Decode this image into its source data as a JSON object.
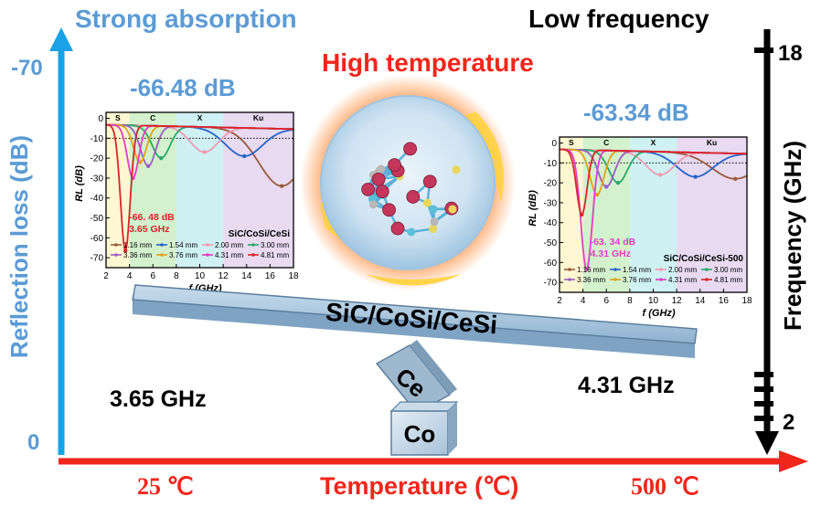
{
  "labels": {
    "strong_absorption": "Strong absorption",
    "low_frequency": "Low frequency",
    "high_temperature": "High temperature",
    "reflection_loss_axis": "Reflection loss (dB)",
    "frequency_axis": "Frequency (GHz)",
    "temperature_axis": "Temperature (℃)",
    "rl_top": "-70",
    "rl_bottom": "0",
    "freq_top": "18",
    "freq_bottom": "2",
    "temp_left": "25 ℃",
    "temp_right": "500 ℃",
    "beam": "SiC/CoSi/CeSi",
    "block_ce": "Ce",
    "block_co": "Co",
    "left_freq": "3.65 GHz",
    "right_freq": "4.31 GHz"
  },
  "colors": {
    "blue": "#5b9bd5",
    "red": "#f0261b",
    "black": "#000000",
    "beam": "#a9c6df"
  },
  "chart_data": [
    {
      "type": "line",
      "headline": "-66.48 dB",
      "legend_title": "SiC/CoSi/CeSi",
      "annotation": [
        "-66. 48 dB",
        "3.65 GHz"
      ],
      "xlabel": "f (GHz)",
      "ylabel": "RL (dB)",
      "xlim": [
        2,
        18
      ],
      "ylim": [
        -75,
        3
      ],
      "xticks": [
        2,
        4,
        6,
        8,
        10,
        12,
        14,
        16,
        18
      ],
      "yticks": [
        0,
        -10,
        -20,
        -30,
        -40,
        -50,
        -60,
        -70
      ],
      "bands": [
        {
          "label": "S",
          "from": 2,
          "to": 4,
          "color": "#fff6c9"
        },
        {
          "label": "C",
          "from": 4,
          "to": 8,
          "color": "#cdeec4"
        },
        {
          "label": "X",
          "from": 8,
          "to": 12,
          "color": "#c7eef2"
        },
        {
          "label": "Ku",
          "from": 12,
          "to": 18,
          "color": "#e3d3ee"
        }
      ],
      "threshold": -10,
      "series": [
        {
          "name": "1.16 mm",
          "color": "#9b5a3c",
          "peak_f": 17.0,
          "peak_rl": -34
        },
        {
          "name": "1.54 mm",
          "color": "#2563c9",
          "peak_f": 13.8,
          "peak_rl": -19
        },
        {
          "name": "2.00 mm",
          "color": "#f29ab0",
          "peak_f": 10.4,
          "peak_rl": -17
        },
        {
          "name": "3.00 mm",
          "color": "#2aa86a",
          "peak_f": 6.7,
          "peak_rl": -20
        },
        {
          "name": "3.36 mm",
          "color": "#9b5fc0",
          "peak_f": 5.6,
          "peak_rl": -24
        },
        {
          "name": "3.76 mm",
          "color": "#e0a21a",
          "peak_f": 4.9,
          "peak_rl": -22
        },
        {
          "name": "4.31 mm",
          "color": "#e03fc2",
          "peak_f": 4.3,
          "peak_rl": -30
        },
        {
          "name": "4.81 mm",
          "color": "#d9242a",
          "peak_f": 3.65,
          "peak_rl": -66.48
        }
      ]
    },
    {
      "type": "line",
      "headline": "-63.34 dB",
      "legend_title": "SiC/CoSi/CeSi-500",
      "annotation": [
        "-63. 34 dB",
        "4.31 GHz"
      ],
      "xlabel": "f (GHz)",
      "ylabel": "RL (dB)",
      "xlim": [
        2,
        18
      ],
      "ylim": [
        -75,
        3
      ],
      "xticks": [
        2,
        4,
        6,
        8,
        10,
        12,
        14,
        16,
        18
      ],
      "yticks": [
        0,
        -10,
        -20,
        -30,
        -40,
        -50,
        -60,
        -70
      ],
      "bands": [
        {
          "label": "S",
          "from": 2,
          "to": 4,
          "color": "#fff6c9"
        },
        {
          "label": "C",
          "from": 4,
          "to": 8,
          "color": "#cdeec4"
        },
        {
          "label": "X",
          "from": 8,
          "to": 12,
          "color": "#c7eef2"
        },
        {
          "label": "Ku",
          "from": 12,
          "to": 18,
          "color": "#e3d3ee"
        }
      ],
      "threshold": -10,
      "series": [
        {
          "name": "1.16 mm",
          "color": "#9b5a3c",
          "peak_f": 17.0,
          "peak_rl": -18
        },
        {
          "name": "1.54 mm",
          "color": "#2563c9",
          "peak_f": 13.6,
          "peak_rl": -17
        },
        {
          "name": "2.00 mm",
          "color": "#f29ab0",
          "peak_f": 10.6,
          "peak_rl": -16
        },
        {
          "name": "3.00 mm",
          "color": "#2aa86a",
          "peak_f": 7.0,
          "peak_rl": -20
        },
        {
          "name": "3.36 mm",
          "color": "#9b5fc0",
          "peak_f": 6.0,
          "peak_rl": -22
        },
        {
          "name": "3.76 mm",
          "color": "#e0a21a",
          "peak_f": 5.2,
          "peak_rl": -26
        },
        {
          "name": "4.31 mm",
          "color": "#e03fc2",
          "peak_f": 4.31,
          "peak_rl": -63.34
        },
        {
          "name": "4.81 mm",
          "color": "#d9242a",
          "peak_f": 3.9,
          "peak_rl": -36
        }
      ]
    }
  ]
}
